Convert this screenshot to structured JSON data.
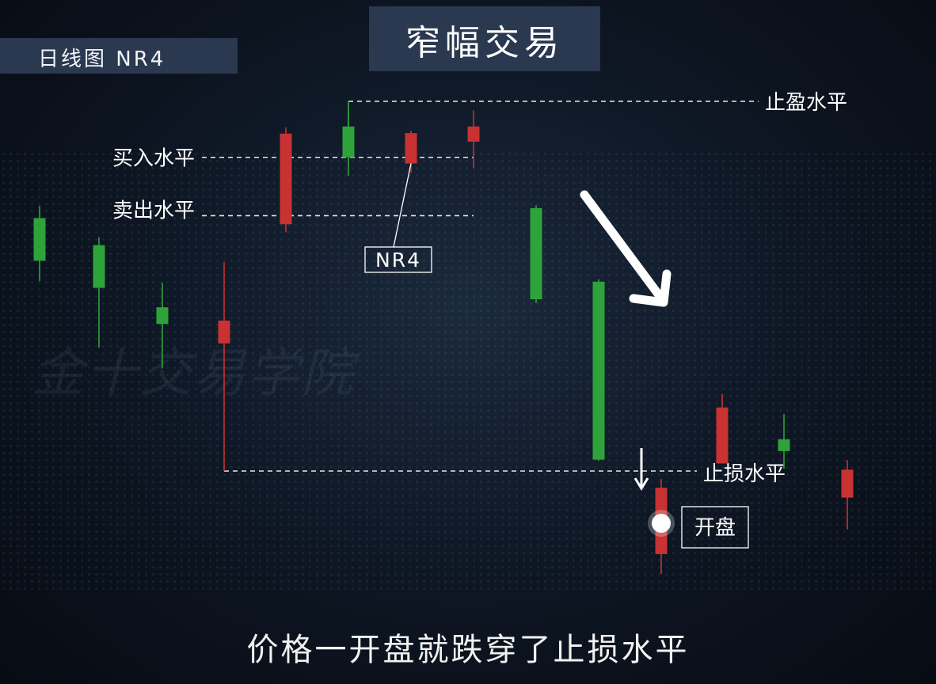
{
  "header": {
    "chart_tag": "日线图  NR4",
    "title": "窄幅交易"
  },
  "watermark": "金十交易学院",
  "subtitle": "价格一开盘就跌穿了止损水平",
  "colors": {
    "up": "#c83232",
    "down": "#2ea33a",
    "line": "#ffffff",
    "panel": "#2a3850"
  },
  "chart_data": {
    "type": "candlestick",
    "title": "窄幅交易",
    "xlabel": "",
    "ylabel": "",
    "ylim": [
      0,
      100
    ],
    "grid": false,
    "candles": [
      {
        "open": 79.7,
        "close": 88.7,
        "high": 91.3,
        "low": 75.4,
        "color": "green"
      },
      {
        "open": 74.0,
        "close": 83.0,
        "high": 84.7,
        "low": 61.4,
        "color": "green"
      },
      {
        "open": 66.4,
        "close": 69.9,
        "high": 75.1,
        "low": 57.0,
        "color": "green"
      },
      {
        "open": 67.1,
        "close": 62.3,
        "high": 79.4,
        "low": 35.4,
        "color": "red"
      },
      {
        "open": 106.5,
        "close": 87.4,
        "high": 107.8,
        "low": 85.7,
        "color": "red"
      },
      {
        "open": 101.5,
        "close": 108.0,
        "high": 113.3,
        "low": 97.6,
        "color": "green"
      },
      {
        "open": 106.6,
        "close": 100.2,
        "high": 107.1,
        "low": 98.3,
        "color": "red",
        "annotation": "NR4"
      },
      {
        "open": 108.0,
        "close": 104.8,
        "high": 111.4,
        "low": 99.3,
        "color": "red"
      },
      {
        "open": 71.6,
        "close": 90.8,
        "high": 91.4,
        "low": 70.8,
        "color": "green"
      },
      {
        "open": 37.8,
        "close": 75.3,
        "high": 75.8,
        "low": 37.5,
        "color": "green"
      },
      {
        "open": 31.9,
        "close": 17.9,
        "high": 33.7,
        "low": 13.7,
        "color": "red",
        "annotation": "开盘"
      },
      {
        "open": 48.8,
        "close": 37.0,
        "high": 51.6,
        "low": 37.0,
        "color": "red"
      },
      {
        "open": 42.1,
        "close": 39.6,
        "high": 47.4,
        "low": 35.9,
        "color": "green"
      },
      {
        "open": 35.7,
        "close": 29.8,
        "high": 37.7,
        "low": 23.1,
        "color": "red"
      }
    ],
    "levels": [
      {
        "name": "止盈水平",
        "value": 113.3
      },
      {
        "name": "买入水平",
        "value": 101.5
      },
      {
        "name": "卖出水平",
        "value": 89.2
      },
      {
        "name": "止损水平",
        "value": 35.4
      }
    ],
    "annotations": [
      {
        "text": "NR4",
        "candle": 6
      },
      {
        "text": "开盘",
        "candle": 10
      }
    ]
  }
}
